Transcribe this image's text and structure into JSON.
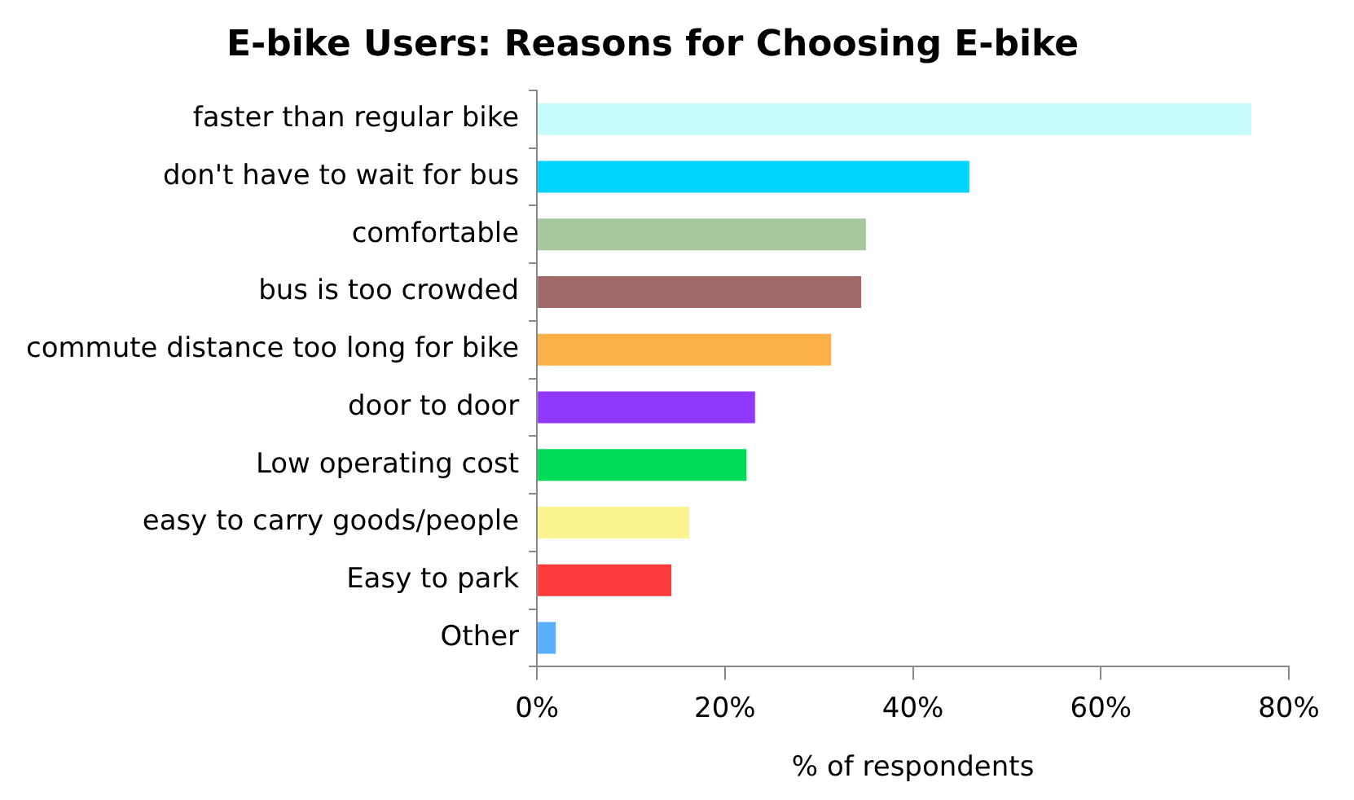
{
  "chart_data": {
    "type": "bar",
    "orientation": "horizontal",
    "title": "E-bike Users: Reasons for Choosing E-bike",
    "xlabel": "% of respondents",
    "categories": [
      "faster than regular bike",
      "don't have to wait for bus",
      "comfortable",
      "bus is too crowded",
      "commute distance too long for bike",
      "door to door",
      "Low operating cost",
      "easy to carry goods/people",
      "Easy to park",
      "Other"
    ],
    "values": [
      76,
      46,
      35,
      34.5,
      31.3,
      23.2,
      22.3,
      16.2,
      14.3,
      2
    ],
    "colors": [
      "#c8fcfc",
      "#00d4fc",
      "#a8c8a0",
      "#a06868",
      "#fcb048",
      "#9038fc",
      "#00dc58",
      "#fcf490",
      "#fc3c3c",
      "#58b0fc"
    ],
    "xlim": [
      0,
      80
    ],
    "xticks": [
      {
        "value": 0,
        "label": "0%"
      },
      {
        "value": 20,
        "label": "20%"
      },
      {
        "value": 40,
        "label": "40%"
      },
      {
        "value": 60,
        "label": "60%"
      },
      {
        "value": 80,
        "label": "80%"
      }
    ],
    "grid": false,
    "legend": false
  }
}
